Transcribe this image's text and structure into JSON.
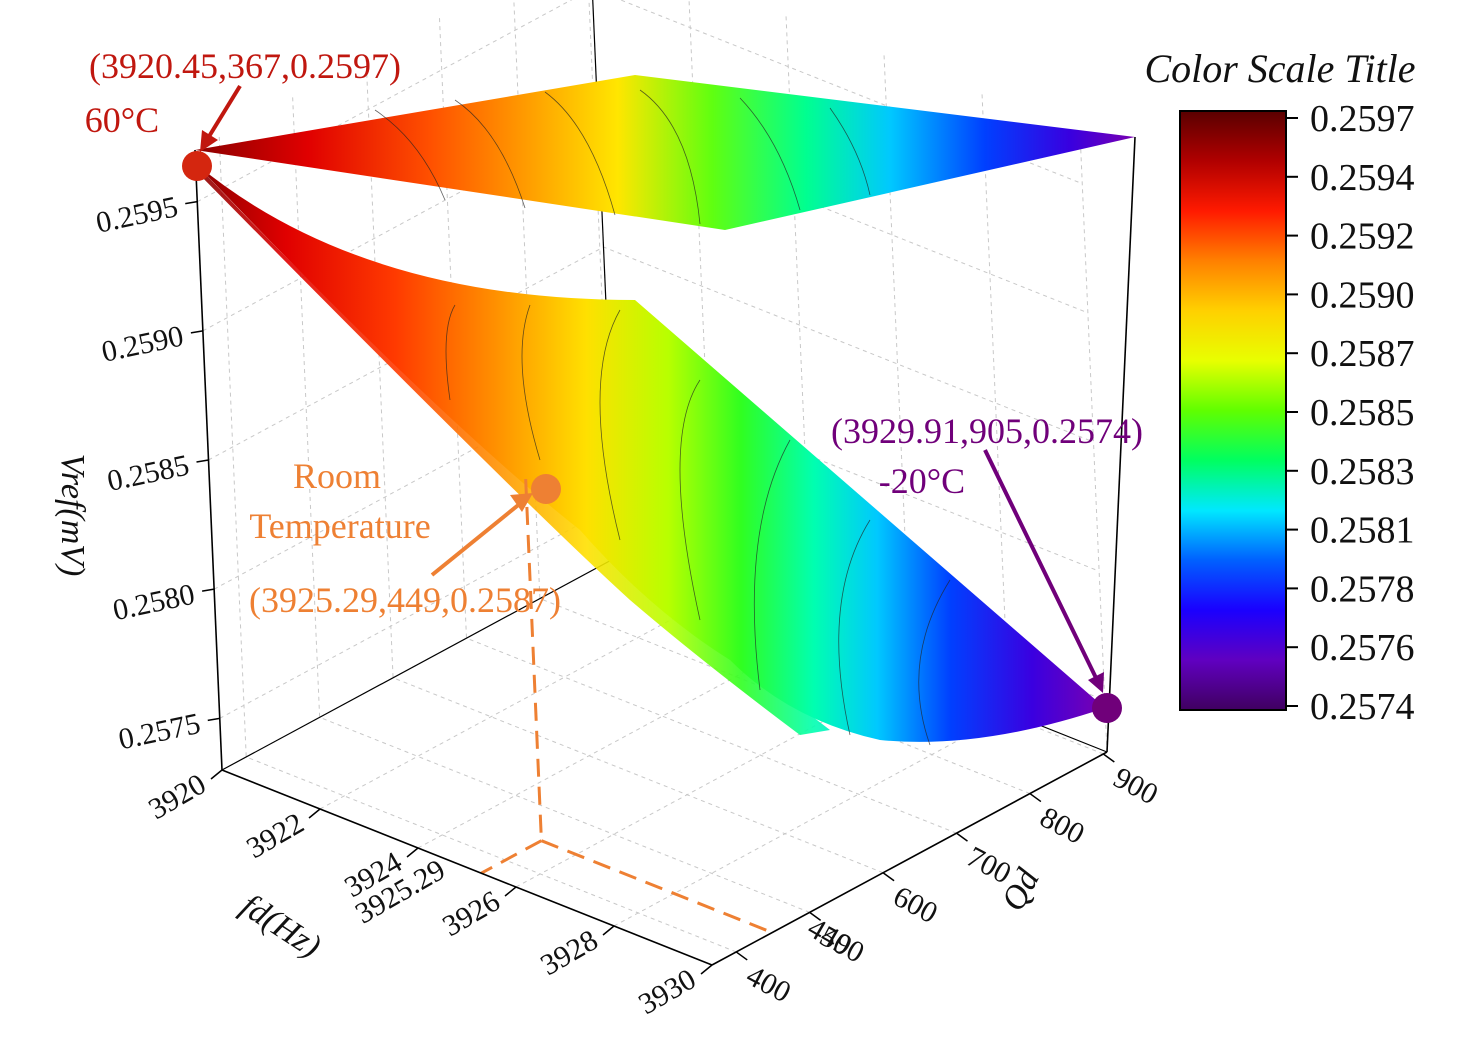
{
  "chart_data": {
    "type": "surface3d",
    "title": "",
    "xlabel": "fd(Hz)",
    "ylabel": "Qd",
    "zlabel": "Vref(mV)",
    "xlim": [
      3920,
      3930
    ],
    "ylim": [
      367,
      905
    ],
    "zlim": [
      0.2573,
      0.2597
    ],
    "x_ticks": [
      "3920",
      "3922",
      "3924",
      "3926",
      "3928",
      "3930"
    ],
    "y_ticks": [
      "400",
      "500",
      "600",
      "700",
      "800",
      "900"
    ],
    "z_ticks": [
      "0.2575",
      "0.2580",
      "0.2585",
      "0.2590",
      "0.2595"
    ],
    "grid": true,
    "colorbar": {
      "title": "Color Scale Title",
      "ticks": [
        "0.2597",
        "0.2594",
        "0.2592",
        "0.2590",
        "0.2587",
        "0.2585",
        "0.2583",
        "0.2581",
        "0.2578",
        "0.2576",
        "0.2574"
      ],
      "colormap": [
        "#5a0000",
        "#b00000",
        "#ff1a00",
        "#ff8000",
        "#ffd000",
        "#e8ff00",
        "#60ff00",
        "#00ff60",
        "#00e8ff",
        "#0060ff",
        "#1a00ff",
        "#6000c0",
        "#400060"
      ]
    },
    "surface_samples": [
      {
        "x": 3920.45,
        "y": 367,
        "z": 0.2597
      },
      {
        "x": 3925.29,
        "y": 449,
        "z": 0.2587
      },
      {
        "x": 3929.91,
        "y": 905,
        "z": 0.2574
      }
    ],
    "annotations": [
      {
        "label": "(3920.45,367,0.2597)",
        "sublabel": "60°C",
        "x": 3920.45,
        "y": 367,
        "z": 0.2597,
        "color": "#c0170f"
      },
      {
        "label": "(3925.29,449,0.2587)",
        "sublabel": "Room Temperature",
        "x": 3925.29,
        "y": 449,
        "z": 0.2587,
        "color": "#ee8033"
      },
      {
        "label": "(3929.91,905,0.2574)",
        "sublabel": "-20°C",
        "x": 3929.91,
        "y": 905,
        "z": 0.2574,
        "color": "#70007a"
      }
    ],
    "drop_labels": {
      "x": "3925.29",
      "y": "449"
    }
  }
}
